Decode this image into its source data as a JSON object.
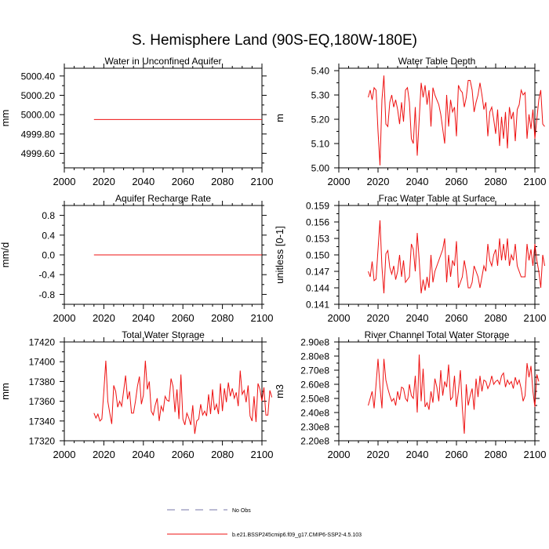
{
  "figure": {
    "title": "S. Hemisphere Land (90S-EQ,180W-180E)",
    "legend": [
      {
        "label": "No Obs",
        "style": "dashed",
        "color": "#7777aa"
      },
      {
        "label": "b.e21.BSSP245cmip6.f09_g17.CMIP6-SSP2-4.5.103",
        "style": "solid",
        "color": "#ee1111"
      }
    ]
  },
  "chart_data": [
    {
      "type": "line",
      "title": "Water in Unconfined Aquifer",
      "ylabel": "mm",
      "xlim": [
        2000,
        2100
      ],
      "ylim": [
        4999.45,
        5000.48
      ],
      "xticks": [
        2000,
        2020,
        2040,
        2060,
        2080,
        2100
      ],
      "yticks": [
        4999.6,
        4999.8,
        5000.0,
        5000.2,
        5000.4
      ],
      "ytick_labels": [
        "4999.60",
        "4999.80",
        "5000.00",
        "5000.20",
        "5000.40"
      ],
      "series": [
        {
          "name": "b.e21.BSSP245cmip6.f09_g17.CMIP6-SSP2-4.5.103",
          "x_start": 2015,
          "values": [
            4999.95,
            4999.95,
            4999.95,
            4999.95,
            4999.95,
            4999.95,
            4999.95,
            4999.95,
            4999.95,
            4999.95,
            4999.95,
            4999.95,
            4999.95,
            4999.95,
            4999.95,
            4999.95,
            4999.95,
            4999.95,
            4999.95,
            4999.95,
            4999.95,
            4999.95,
            4999.95,
            4999.95,
            4999.95,
            4999.95,
            4999.95,
            4999.95,
            4999.95,
            4999.95,
            4999.95,
            4999.95,
            4999.95,
            4999.95,
            4999.95,
            4999.95,
            4999.95,
            4999.95,
            4999.95,
            4999.95,
            4999.95,
            4999.95,
            4999.95,
            4999.95,
            4999.95,
            4999.95,
            4999.95,
            4999.95,
            4999.95,
            4999.95,
            4999.95,
            4999.95,
            4999.95,
            4999.95,
            4999.95,
            4999.95,
            4999.95,
            4999.95,
            4999.95,
            4999.95,
            4999.95,
            4999.95,
            4999.95,
            4999.95,
            4999.95,
            4999.95,
            4999.95,
            4999.95,
            4999.95,
            4999.95,
            4999.95,
            4999.95,
            4999.95,
            4999.95,
            4999.95,
            4999.95,
            4999.95,
            4999.95,
            4999.95,
            4999.95,
            4999.95,
            4999.95,
            4999.95,
            4999.95,
            4999.95,
            4999.95
          ]
        }
      ]
    },
    {
      "type": "line",
      "title": "Water Table Depth",
      "ylabel": "m",
      "xlim": [
        2000,
        2100
      ],
      "ylim": [
        5.0,
        5.41
      ],
      "xticks": [
        2000,
        2020,
        2040,
        2060,
        2080,
        2100
      ],
      "yticks": [
        5.0,
        5.1,
        5.2,
        5.3,
        5.4
      ],
      "ytick_labels": [
        "5.00",
        "5.10",
        "5.20",
        "5.30",
        "5.40"
      ],
      "series": [
        {
          "name": "b.e21.BSSP245cmip6.f09_g17.CMIP6-SSP2-4.5.103",
          "x_start": 2015,
          "values": [
            5.29,
            5.32,
            5.28,
            5.33,
            5.32,
            5.15,
            5.01,
            5.28,
            5.38,
            5.18,
            5.17,
            5.27,
            5.3,
            5.25,
            5.28,
            5.24,
            5.18,
            5.27,
            5.19,
            5.32,
            5.33,
            5.27,
            5.12,
            5.1,
            5.25,
            5.05,
            5.2,
            5.35,
            5.29,
            5.34,
            5.26,
            5.32,
            5.17,
            5.33,
            5.3,
            5.28,
            5.26,
            5.22,
            5.16,
            5.1,
            5.3,
            5.17,
            5.28,
            5.23,
            5.25,
            5.13,
            5.34,
            5.32,
            5.31,
            5.25,
            5.29,
            5.36,
            5.36,
            5.32,
            5.23,
            5.27,
            5.3,
            5.35,
            5.3,
            5.24,
            5.27,
            5.13,
            5.23,
            5.25,
            5.2,
            5.14,
            5.24,
            5.09,
            5.21,
            5.12,
            5.23,
            5.08,
            5.25,
            5.2,
            5.23,
            5.11,
            5.24,
            5.26,
            5.32,
            5.3,
            5.31,
            5.12,
            5.22,
            5.16,
            5.24,
            5.12,
            5.2,
            5.28,
            5.32,
            5.18,
            5.17
          ]
        }
      ]
    },
    {
      "type": "line",
      "title": "Aquifer Recharge Rate",
      "ylabel": "mm/d",
      "xlim": [
        2000,
        2100
      ],
      "ylim": [
        -1.0,
        1.0
      ],
      "xticks": [
        2000,
        2020,
        2040,
        2060,
        2080,
        2100
      ],
      "yticks": [
        -0.8,
        -0.4,
        0.0,
        0.4,
        0.8
      ],
      "ytick_labels": [
        "-0.8",
        "-0.4",
        "0.0",
        "0.4",
        "0.8"
      ],
      "series": [
        {
          "name": "b.e21.BSSP245cmip6.f09_g17.CMIP6-SSP2-4.5.103",
          "x_start": 2015,
          "values": [
            0,
            0,
            0,
            0,
            0,
            0,
            0,
            0,
            0,
            0,
            0,
            0,
            0,
            0,
            0,
            0,
            0,
            0,
            0,
            0,
            0,
            0,
            0,
            0,
            0,
            0,
            0,
            0,
            0,
            0,
            0,
            0,
            0,
            0,
            0,
            0,
            0,
            0,
            0,
            0,
            0,
            0,
            0,
            0,
            0,
            0,
            0,
            0,
            0,
            0,
            0,
            0,
            0,
            0,
            0,
            0,
            0,
            0,
            0,
            0,
            0,
            0,
            0,
            0,
            0,
            0,
            0,
            0,
            0,
            0,
            0,
            0,
            0,
            0,
            0,
            0,
            0,
            0,
            0,
            0,
            0,
            0,
            0,
            0,
            0,
            0
          ]
        }
      ]
    },
    {
      "type": "line",
      "title": "Frac Water Table at Surface",
      "ylabel": "unitless [0-1]",
      "xlim": [
        2000,
        2100
      ],
      "ylim": [
        0.141,
        0.159
      ],
      "xticks": [
        2000,
        2020,
        2040,
        2060,
        2080,
        2100
      ],
      "yticks": [
        0.141,
        0.144,
        0.147,
        0.15,
        0.153,
        0.156,
        0.159
      ],
      "ytick_labels": [
        "0.141",
        "0.144",
        "0.147",
        "0.150",
        "0.153",
        "0.156",
        "0.159"
      ],
      "series": [
        {
          "name": "b.e21.BSSP245cmip6.f09_g17.CMIP6-SSP2-4.5.103",
          "x_start": 2015,
          "values": [
            0.147,
            0.146,
            0.1488,
            0.1453,
            0.1456,
            0.151,
            0.1563,
            0.1478,
            0.143,
            0.1502,
            0.1508,
            0.1477,
            0.1465,
            0.148,
            0.1455,
            0.147,
            0.15,
            0.146,
            0.149,
            0.145,
            0.1455,
            0.146,
            0.152,
            0.151,
            0.147,
            0.154,
            0.149,
            0.143,
            0.1455,
            0.1435,
            0.146,
            0.144,
            0.15,
            0.145,
            0.147,
            0.148,
            0.149,
            0.15,
            0.151,
            0.153,
            0.145,
            0.15,
            0.146,
            0.149,
            0.148,
            0.1525,
            0.144,
            0.145,
            0.146,
            0.149,
            0.147,
            0.144,
            0.144,
            0.145,
            0.148,
            0.147,
            0.146,
            0.144,
            0.146,
            0.148,
            0.147,
            0.152,
            0.149,
            0.148,
            0.15,
            0.151,
            0.148,
            0.153,
            0.149,
            0.152,
            0.149,
            0.153,
            0.148,
            0.15,
            0.149,
            0.152,
            0.148,
            0.147,
            0.146,
            0.146,
            0.146,
            0.152,
            0.149,
            0.151,
            0.148,
            0.152,
            0.149,
            0.147,
            0.144,
            0.15,
            0.148
          ]
        }
      ]
    },
    {
      "type": "line",
      "title": "Total Water Storage",
      "ylabel": "mm",
      "xlim": [
        2000,
        2100
      ],
      "ylim": [
        17320,
        17420
      ],
      "xticks": [
        2000,
        2020,
        2040,
        2060,
        2080,
        2100
      ],
      "yticks": [
        17320,
        17340,
        17360,
        17380,
        17400,
        17420
      ],
      "ytick_labels": [
        "17320",
        "17340",
        "17360",
        "17380",
        "17400",
        "17420"
      ],
      "series": [
        {
          "name": "b.e21.BSSP245cmip6.f09_g17.CMIP6-SSP2-4.5.103",
          "x_start": 2015,
          "values": [
            17348,
            17343,
            17347,
            17340,
            17342,
            17370,
            17401,
            17360,
            17348,
            17337,
            17376,
            17370,
            17354,
            17360,
            17355,
            17370,
            17386,
            17362,
            17370,
            17348,
            17348,
            17360,
            17375,
            17385,
            17357,
            17366,
            17401,
            17372,
            17380,
            17350,
            17346,
            17356,
            17363,
            17340,
            17355,
            17350,
            17365,
            17361,
            17360,
            17383,
            17375,
            17349,
            17372,
            17342,
            17387,
            17342,
            17336,
            17348,
            17343,
            17336,
            17356,
            17327,
            17340,
            17342,
            17357,
            17346,
            17350,
            17345,
            17367,
            17347,
            17372,
            17351,
            17357,
            17347,
            17378,
            17350,
            17373,
            17359,
            17379,
            17365,
            17373,
            17363,
            17369,
            17355,
            17391,
            17367,
            17371,
            17359,
            17376,
            17345,
            17340,
            17365,
            17339,
            17378,
            17372,
            17360,
            17374,
            17346,
            17346,
            17371,
            17364
          ]
        }
      ]
    },
    {
      "type": "line",
      "title": "River Channel Total Water Storage",
      "ylabel": "m3",
      "xlim": [
        2000,
        2100
      ],
      "ylim": [
        220000000.0,
        290000000.0
      ],
      "xticks": [
        2000,
        2020,
        2040,
        2060,
        2080,
        2100
      ],
      "yticks": [
        220000000.0,
        230000000.0,
        240000000.0,
        250000000.0,
        260000000.0,
        270000000.0,
        280000000.0,
        290000000.0
      ],
      "ytick_labels": [
        "2.20e8",
        "2.30e8",
        "2.40e8",
        "2.50e8",
        "2.60e8",
        "2.70e8",
        "2.80e8",
        "2.90e8"
      ],
      "series": [
        {
          "name": "b.e21.BSSP245cmip6.f09_g17.CMIP6-SSP2-4.5.103",
          "x_start": 2015,
          "values": [
            245000000.0,
            250000000.0,
            255000000.0,
            243000000.0,
            260000000.0,
            278000000.0,
            258000000.0,
            243000000.0,
            278000000.0,
            263000000.0,
            257000000.0,
            252000000.0,
            248000000.0,
            250000000.0,
            245000000.0,
            255000000.0,
            249000000.0,
            258000000.0,
            257000000.0,
            250000000.0,
            248000000.0,
            260000000.0,
            252000000.0,
            250000000.0,
            266000000.0,
            240000000.0,
            281000000.0,
            248000000.0,
            271000000.0,
            244000000.0,
            247000000.0,
            242000000.0,
            255000000.0,
            247000000.0,
            264000000.0,
            258000000.0,
            248000000.0,
            270000000.0,
            252000000.0,
            262000000.0,
            258000000.0,
            274000000.0,
            249000000.0,
            251000000.0,
            266000000.0,
            244000000.0,
            255000000.0,
            270000000.0,
            243000000.0,
            225000000.0,
            260000000.0,
            245000000.0,
            252000000.0,
            257000000.0,
            242000000.0,
            264000000.0,
            251000000.0,
            266000000.0,
            255000000.0,
            263000000.0,
            262000000.0,
            257000000.0,
            260000000.0,
            266000000.0,
            260000000.0,
            262000000.0,
            263000000.0,
            260000000.0,
            266000000.0,
            268000000.0,
            258000000.0,
            263000000.0,
            260000000.0,
            262000000.0,
            257000000.0,
            265000000.0,
            260000000.0,
            263000000.0,
            257000000.0,
            248000000.0,
            252000000.0,
            275000000.0,
            265000000.0,
            273000000.0,
            255000000.0,
            244000000.0,
            267000000.0,
            262000000.0
          ]
        }
      ]
    }
  ]
}
